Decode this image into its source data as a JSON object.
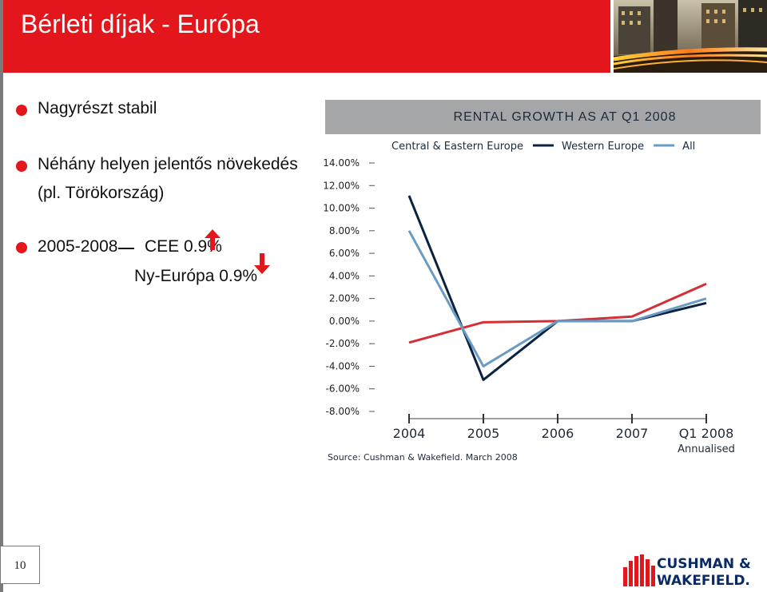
{
  "slide": {
    "title": "Bérleti díjak - Európa",
    "page_number": "10"
  },
  "bullets": [
    {
      "text": "Nagyrészt stabil"
    },
    {
      "text": "Néhány helyen jelentős növekedés",
      "text2": "(pl. Törökország)"
    },
    {
      "text": "2005-2008",
      "cee": "CEE 0.9%",
      "west": "Ny-Európa 0.9%"
    }
  ],
  "colors": {
    "brand_red": "#e3161b",
    "cee": "#d62e35",
    "western": "#0c2241",
    "all": "#6a9cc3",
    "title_bar": "#a5a6a8"
  },
  "icons": {
    "up": "arrow-up-icon",
    "down": "arrow-down-icon"
  },
  "logo": {
    "line1": "CUSHMAN &",
    "line2": "WAKEFIELD."
  },
  "chart_data": {
    "type": "line",
    "title": "RENTAL GROWTH AS AT Q1 2008",
    "categories": [
      "2004",
      "2005",
      "2006",
      "2007",
      "Q1 2008"
    ],
    "category_sublabels": [
      "",
      "",
      "",
      "",
      "Annualised"
    ],
    "ylim": [
      -8,
      14
    ],
    "yticks": [
      14,
      12,
      10,
      8,
      6,
      4,
      2,
      0,
      -2,
      -4,
      -6,
      -8
    ],
    "ytick_labels": [
      "14.00%",
      "12.00%",
      "10.00%",
      "8.00%",
      "6.00%",
      "4.00%",
      "2.00%",
      "0.00%",
      "-2.00%",
      "-4.00%",
      "-6.00%",
      "-8.00%"
    ],
    "legend_position": "top",
    "series": [
      {
        "name": "Central & Eastern Europe",
        "color": "#d62e35",
        "values": [
          -1.9,
          -0.1,
          0.0,
          0.4,
          3.3
        ]
      },
      {
        "name": "Western Europe",
        "color": "#0c2241",
        "values": [
          11.1,
          -5.2,
          0.0,
          0.0,
          1.6
        ]
      },
      {
        "name": "All",
        "color": "#6a9cc3",
        "values": [
          8.0,
          -4.0,
          0.0,
          0.0,
          2.0
        ]
      }
    ],
    "source": "Source:  Cushman & Wakefield. March 2008"
  }
}
